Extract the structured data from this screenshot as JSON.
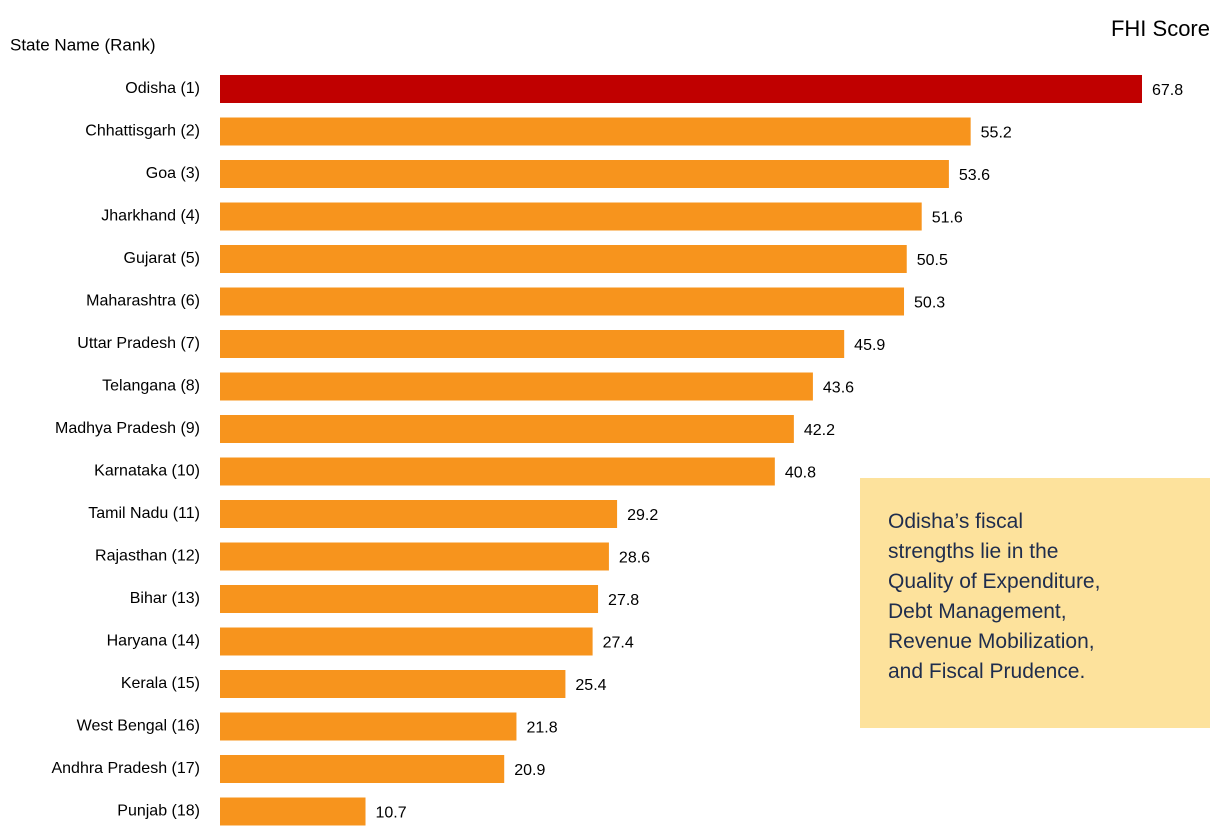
{
  "chart_data": {
    "type": "bar",
    "orientation": "horizontal",
    "title": "FHI Score",
    "y_axis_label": "State Name (Rank)",
    "categories": [
      "Odisha (1)",
      "Chhattisgarh (2)",
      "Goa (3)",
      "Jharkhand (4)",
      "Gujarat (5)",
      "Maharashtra (6)",
      "Uttar Pradesh (7)",
      "Telangana (8)",
      "Madhya Pradesh (9)",
      "Karnataka (10)",
      "Tamil Nadu (11)",
      "Rajasthan (12)",
      "Bihar (13)",
      "Haryana (14)",
      "Kerala (15)",
      "West Bengal (16)",
      "Andhra Pradesh (17)",
      "Punjab (18)"
    ],
    "values": [
      67.8,
      55.2,
      53.6,
      51.6,
      50.5,
      50.3,
      45.9,
      43.6,
      42.2,
      40.8,
      29.2,
      28.6,
      27.8,
      27.4,
      25.4,
      21.8,
      20.9,
      10.7
    ],
    "colors": [
      "#c00000",
      "#f7941d",
      "#f7941d",
      "#f7941d",
      "#f7941d",
      "#f7941d",
      "#f7941d",
      "#f7941d",
      "#f7941d",
      "#f7941d",
      "#f7941d",
      "#f7941d",
      "#f7941d",
      "#f7941d",
      "#f7941d",
      "#f7941d",
      "#f7941d",
      "#f7941d"
    ],
    "annotation": [
      "Odisha’s fiscal",
      "strengths lie in the",
      "Quality of Expenditure,",
      "Debt Management,",
      "Revenue Mobilization,",
      "and Fiscal Prudence."
    ]
  }
}
